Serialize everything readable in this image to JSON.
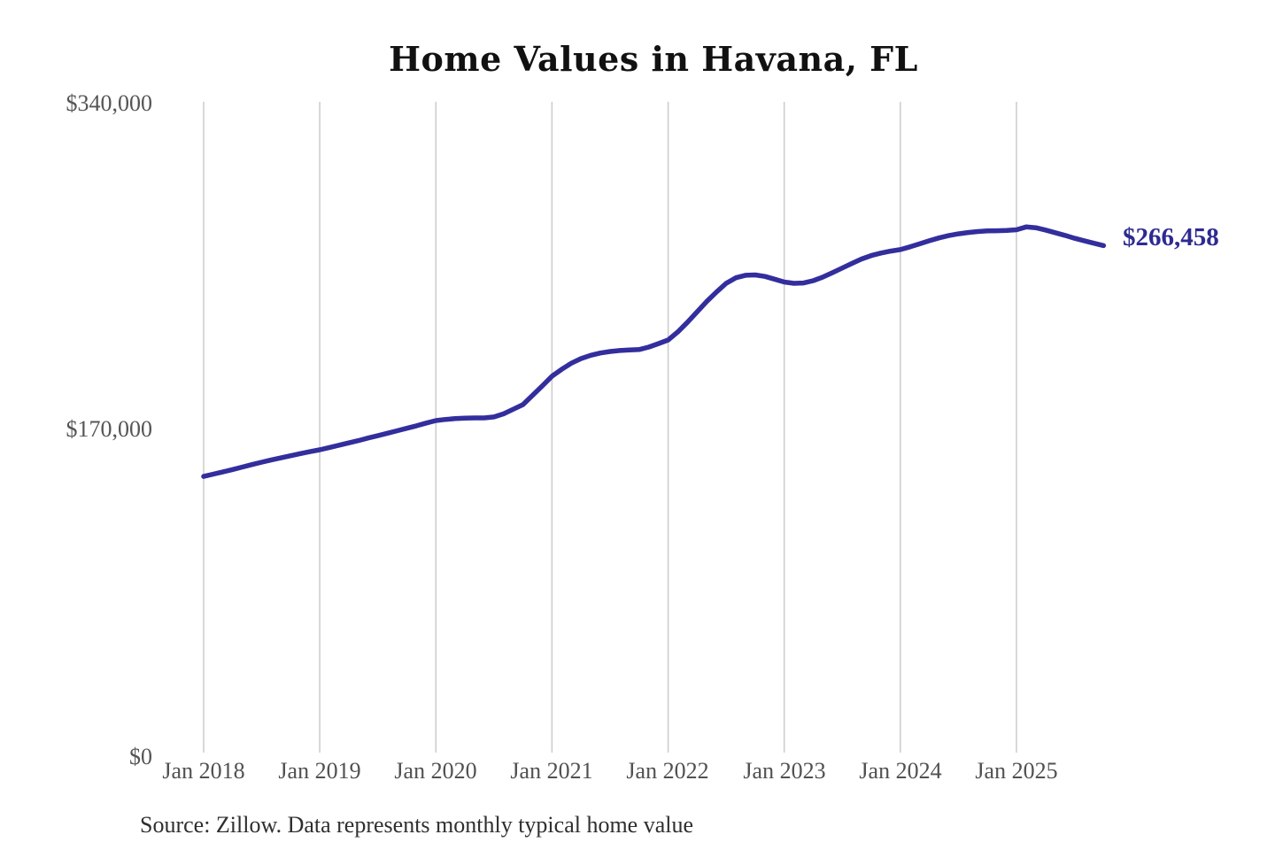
{
  "page": {
    "background": "#ffffff"
  },
  "chart": {
    "title": "Home Values in Havana, FL",
    "source_note": "Source: Zillow. Data represents monthly typical home value",
    "end_value_label": "$266,458",
    "colors": {
      "line": "#332e9d",
      "end_label": "#2e2a92",
      "grid": "#cbcbcb",
      "title": "#111111",
      "axis_text": "#555555",
      "source_text": "#2f2f2f"
    }
  },
  "chart_data": {
    "type": "line",
    "title": "Home Values in Havana, FL",
    "xlabel": "",
    "ylabel": "",
    "ylim": [
      0,
      340000
    ],
    "grid": "vertical-only",
    "legend": "none",
    "y_ticks": [
      {
        "value": 0,
        "label": "$0"
      },
      {
        "value": 170000,
        "label": "$170,000"
      },
      {
        "value": 340000,
        "label": "$340,000"
      }
    ],
    "x_ticks": [
      "Jan 2018",
      "Jan 2019",
      "Jan 2020",
      "Jan 2021",
      "Jan 2022",
      "Jan 2023",
      "Jan 2024",
      "Jan 2025"
    ],
    "series": [
      {
        "name": "Monthly typical home value",
        "start_month": "2018-01",
        "end_month": "2025-10",
        "final_value": 266458,
        "end_label": "$266,458",
        "values": [
          146200,
          147400,
          148600,
          149800,
          151100,
          152400,
          153600,
          154800,
          155900,
          157000,
          158100,
          159100,
          160100,
          161300,
          162500,
          163700,
          164900,
          166200,
          167400,
          168700,
          170000,
          171300,
          172600,
          174000,
          175300,
          175900,
          176300,
          176600,
          176700,
          176700,
          177200,
          178800,
          181200,
          183600,
          188500,
          193400,
          198400,
          202000,
          205200,
          207600,
          209300,
          210500,
          211300,
          211800,
          212100,
          212300,
          213600,
          215400,
          217300,
          221500,
          226500,
          232000,
          237400,
          242300,
          246800,
          249700,
          251000,
          251200,
          250400,
          249000,
          247500,
          246800,
          247000,
          248200,
          250100,
          252400,
          254800,
          257200,
          259500,
          261300,
          262600,
          263600,
          264400,
          265800,
          267400,
          269000,
          270500,
          271700,
          272600,
          273300,
          273800,
          274100,
          274200,
          274400,
          274700,
          276200,
          275800,
          274600,
          273200,
          271800,
          270300,
          269000,
          267700,
          266458
        ]
      }
    ]
  }
}
